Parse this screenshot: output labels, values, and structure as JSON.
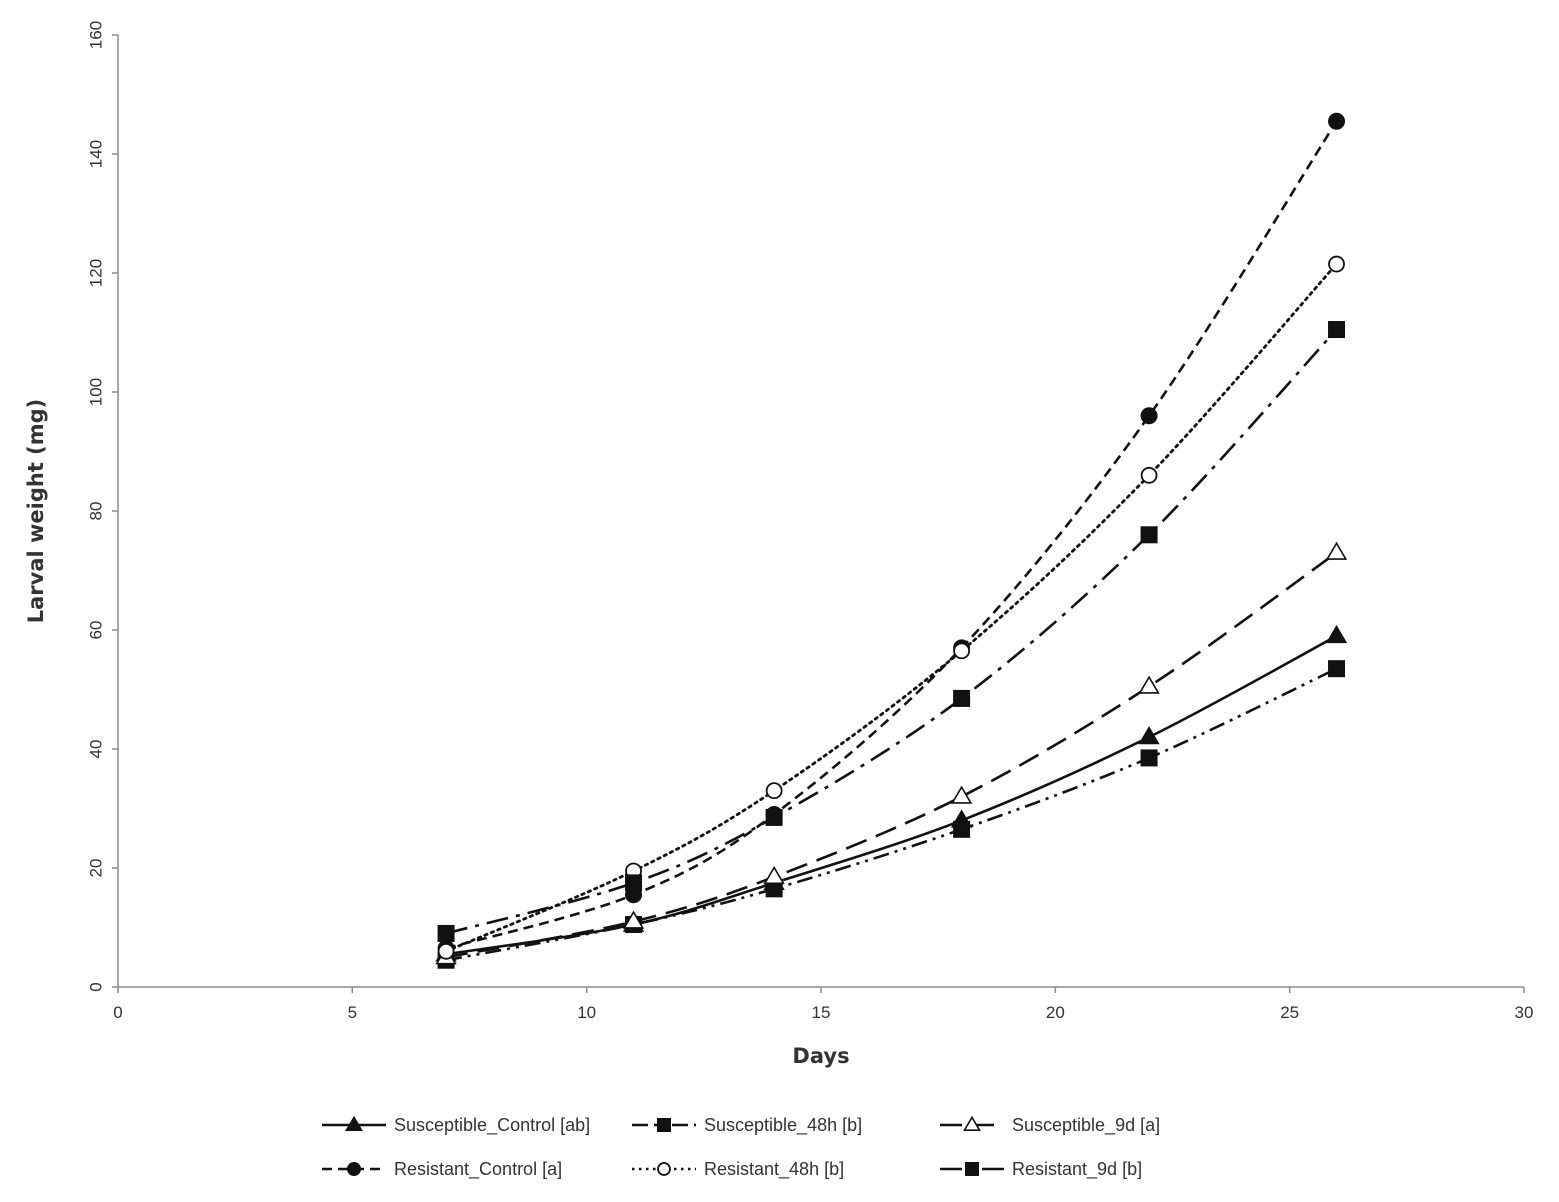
{
  "chart_data": {
    "type": "line",
    "title": "",
    "xlabel": "Days",
    "ylabel": "Larval weight (mg)",
    "xlim": [
      0,
      30
    ],
    "ylim": [
      0,
      160
    ],
    "xticks": [
      "0",
      "5",
      "10",
      "15",
      "20",
      "25",
      "30"
    ],
    "yticks": [
      "0",
      "20",
      "40",
      "60",
      "80",
      "100",
      "120",
      "140",
      "160"
    ],
    "grid": false,
    "legend_position": "bottom",
    "x": [
      7,
      11,
      14,
      18,
      22,
      26
    ],
    "series": [
      {
        "name": "Susceptible_Control [ab]",
        "marker": "filled-triangle",
        "line": "solid",
        "values": [
          5.5,
          10.5,
          17.5,
          28,
          42,
          59
        ]
      },
      {
        "name": "Susceptible_48h [b]",
        "marker": "filled-square",
        "line": "dash-dot-dot",
        "values": [
          4.5,
          10.5,
          16.5,
          26.5,
          38.5,
          53.5
        ]
      },
      {
        "name": "Susceptible_9d [a]",
        "marker": "open-triangle",
        "line": "long-dash",
        "values": [
          5,
          11,
          18.5,
          32,
          50.5,
          73
        ]
      },
      {
        "name": "Resistant_Control [a]",
        "marker": "filled-circle",
        "line": "dash",
        "values": [
          6.5,
          15.5,
          29,
          57,
          96,
          145.5
        ]
      },
      {
        "name": "Resistant_48h [b]",
        "marker": "open-circle",
        "line": "dot",
        "values": [
          6,
          19.5,
          33,
          56.5,
          86,
          121.5
        ]
      },
      {
        "name": "Resistant_9d [b]",
        "marker": "filled-square",
        "line": "dash-dot",
        "values": [
          9,
          17.5,
          28.5,
          48.5,
          76,
          110.5
        ]
      }
    ]
  }
}
